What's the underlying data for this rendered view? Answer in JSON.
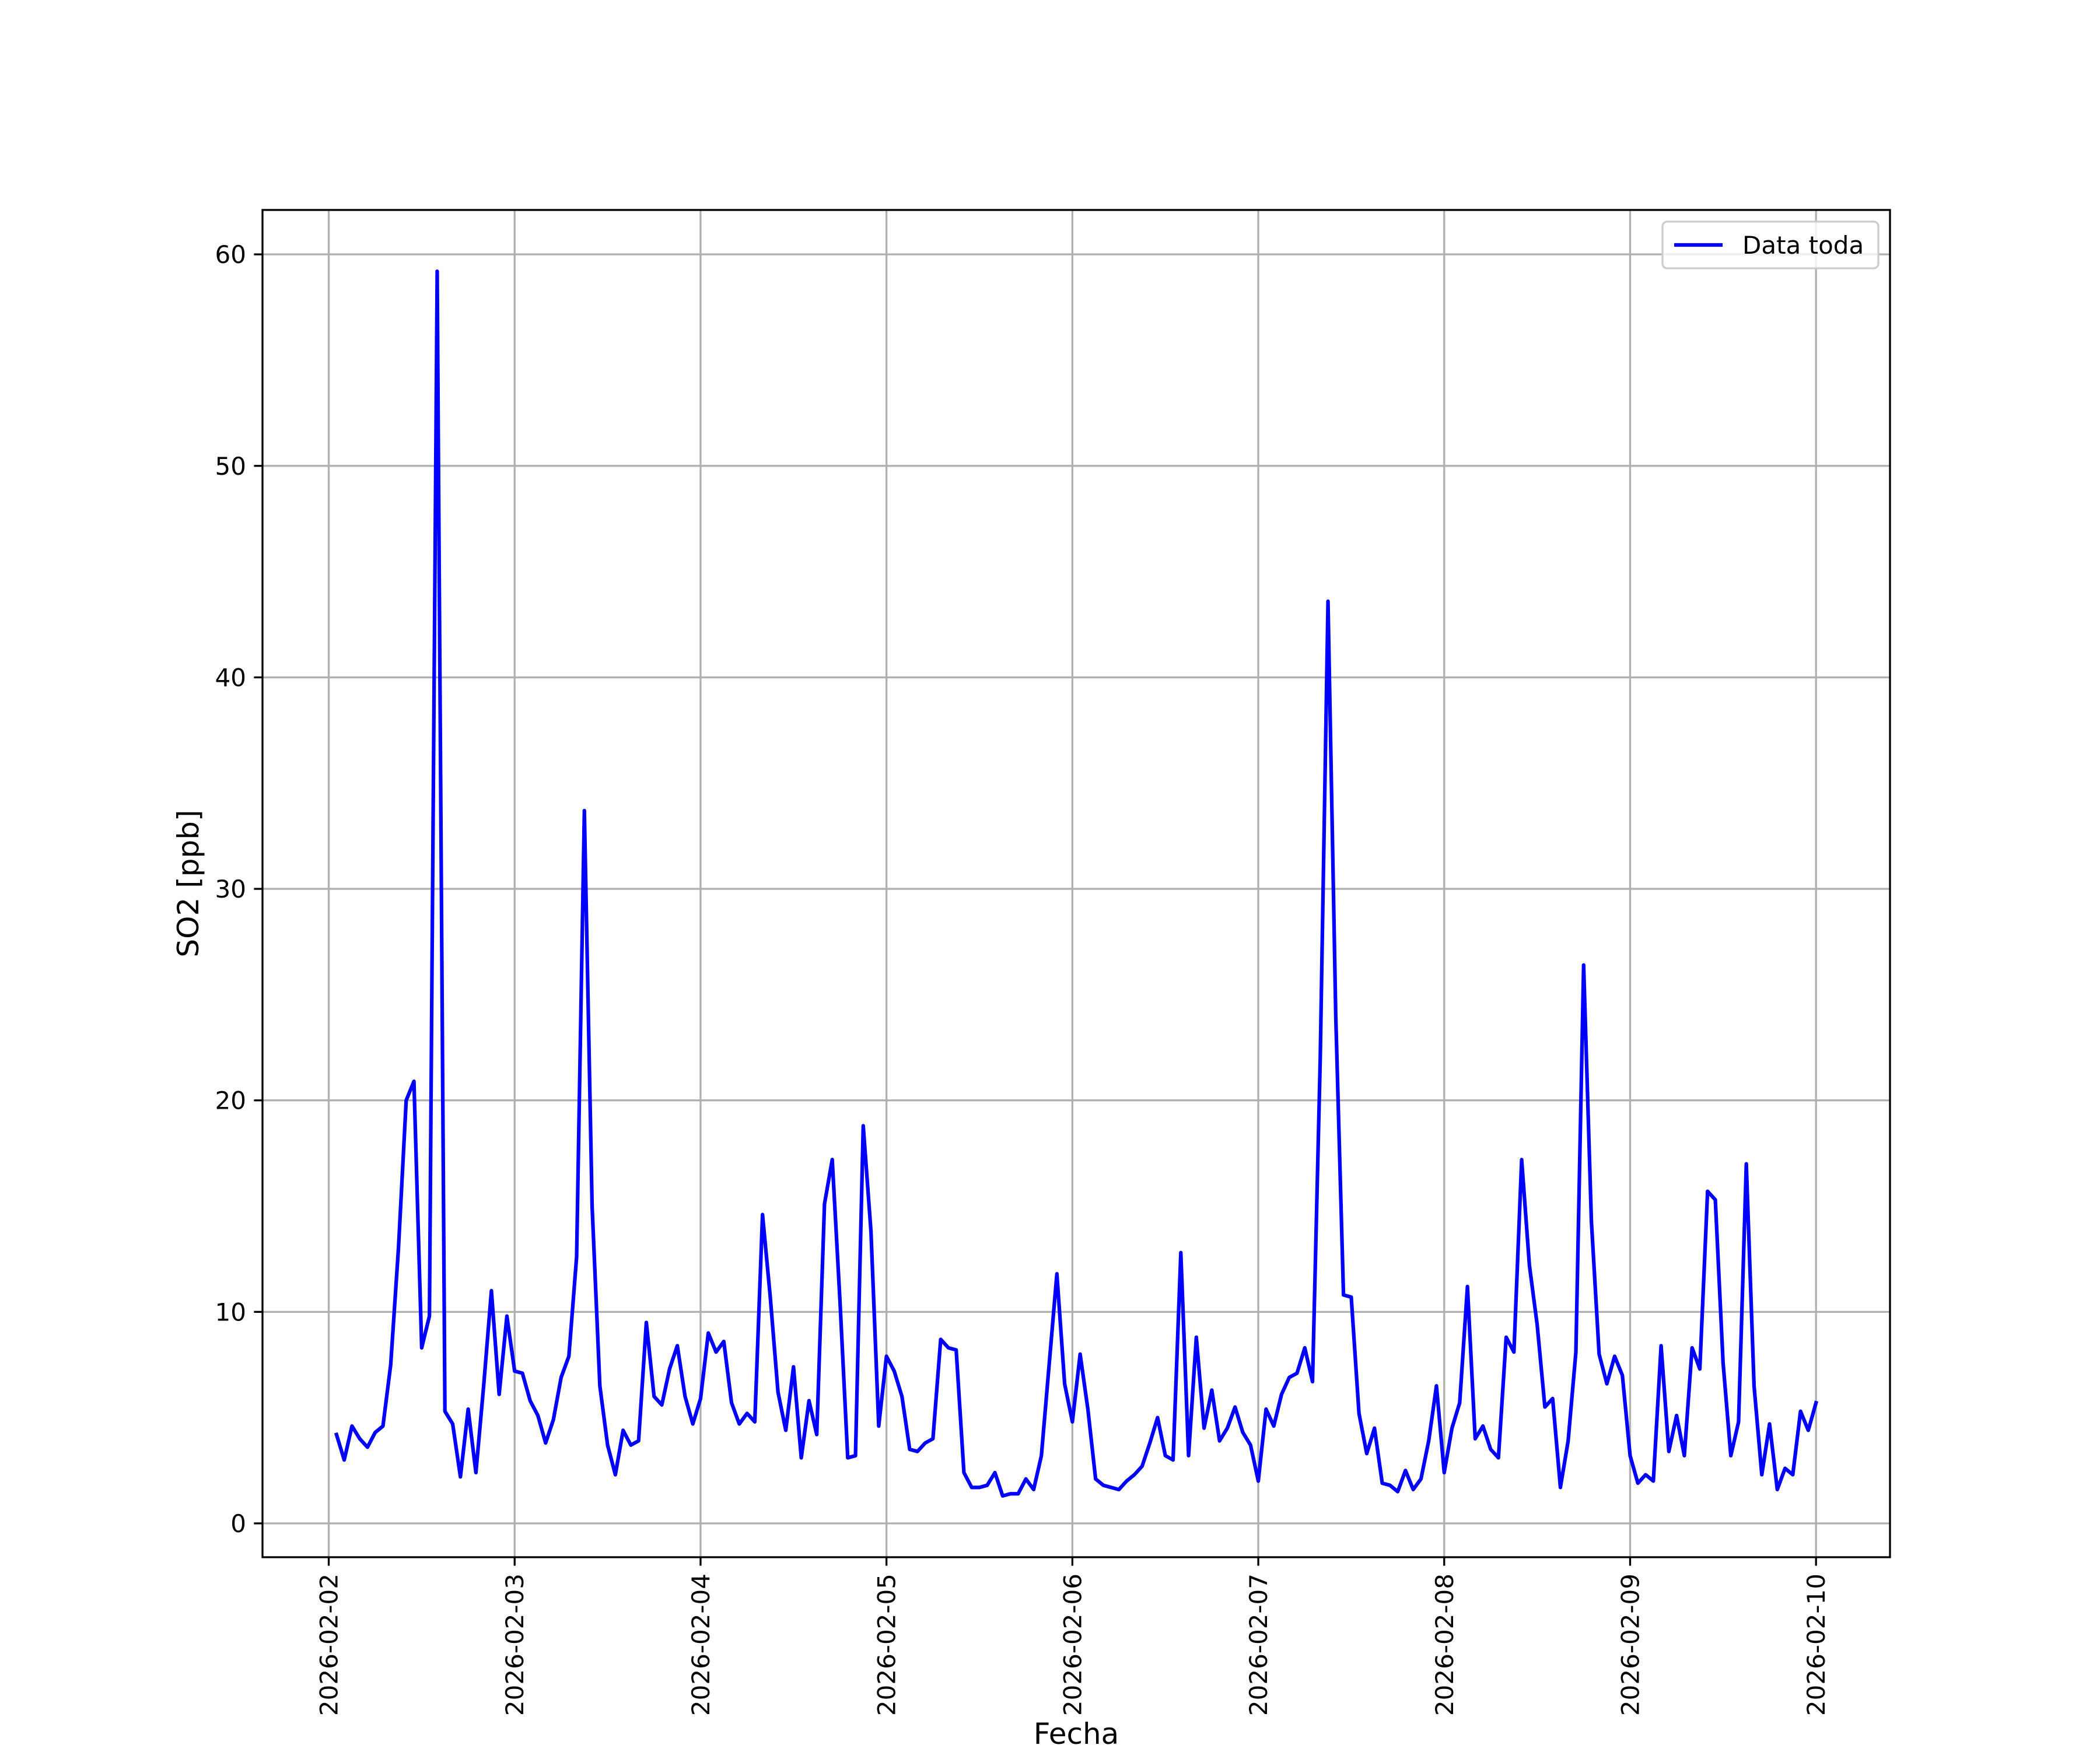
{
  "chart_data": {
    "type": "line",
    "xlabel": "Fecha",
    "ylabel": "SO2 [ppb]",
    "x": [
      "2026-02-02 01:00",
      "2026-02-02 02:00",
      "2026-02-02 03:00",
      "2026-02-02 04:00",
      "2026-02-02 05:00",
      "2026-02-02 06:00",
      "2026-02-02 07:00",
      "2026-02-02 08:00",
      "2026-02-02 09:00",
      "2026-02-02 10:00",
      "2026-02-02 11:00",
      "2026-02-02 12:00",
      "2026-02-02 13:00",
      "2026-02-02 14:00",
      "2026-02-02 15:00",
      "2026-02-02 16:00",
      "2026-02-02 17:00",
      "2026-02-02 18:00",
      "2026-02-02 19:00",
      "2026-02-02 20:00",
      "2026-02-02 21:00",
      "2026-02-02 22:00",
      "2026-02-02 23:00",
      "2026-02-03 00:00",
      "2026-02-03 01:00",
      "2026-02-03 02:00",
      "2026-02-03 03:00",
      "2026-02-03 04:00",
      "2026-02-03 05:00",
      "2026-02-03 06:00",
      "2026-02-03 07:00",
      "2026-02-03 08:00",
      "2026-02-03 09:00",
      "2026-02-03 10:00",
      "2026-02-03 11:00",
      "2026-02-03 12:00",
      "2026-02-03 13:00",
      "2026-02-03 14:00",
      "2026-02-03 15:00",
      "2026-02-03 16:00",
      "2026-02-03 17:00",
      "2026-02-03 18:00",
      "2026-02-03 19:00",
      "2026-02-03 20:00",
      "2026-02-03 21:00",
      "2026-02-03 22:00",
      "2026-02-03 23:00",
      "2026-02-04 00:00",
      "2026-02-04 01:00",
      "2026-02-04 02:00",
      "2026-02-04 03:00",
      "2026-02-04 04:00",
      "2026-02-04 05:00",
      "2026-02-04 06:00",
      "2026-02-04 07:00",
      "2026-02-04 08:00",
      "2026-02-04 09:00",
      "2026-02-04 10:00",
      "2026-02-04 11:00",
      "2026-02-04 12:00",
      "2026-02-04 13:00",
      "2026-02-04 14:00",
      "2026-02-04 15:00",
      "2026-02-04 16:00",
      "2026-02-04 17:00",
      "2026-02-04 18:00",
      "2026-02-04 19:00",
      "2026-02-04 20:00",
      "2026-02-04 21:00",
      "2026-02-04 22:00",
      "2026-02-04 23:00",
      "2026-02-05 00:00",
      "2026-02-05 01:00",
      "2026-02-05 02:00",
      "2026-02-05 03:00",
      "2026-02-05 04:00",
      "2026-02-05 05:00",
      "2026-02-05 06:00",
      "2026-02-05 07:00",
      "2026-02-05 08:00",
      "2026-02-05 09:00",
      "2026-02-05 10:00",
      "2026-02-05 11:00",
      "2026-02-05 12:00",
      "2026-02-05 13:00",
      "2026-02-05 14:00",
      "2026-02-05 15:00",
      "2026-02-05 16:00",
      "2026-02-05 17:00",
      "2026-02-05 18:00",
      "2026-02-05 19:00",
      "2026-02-05 20:00",
      "2026-02-05 21:00",
      "2026-02-05 22:00",
      "2026-02-05 23:00",
      "2026-02-06 00:00",
      "2026-02-06 01:00",
      "2026-02-06 02:00",
      "2026-02-06 03:00",
      "2026-02-06 04:00",
      "2026-02-06 05:00",
      "2026-02-06 06:00",
      "2026-02-06 07:00",
      "2026-02-06 08:00",
      "2026-02-06 09:00",
      "2026-02-06 10:00",
      "2026-02-06 11:00",
      "2026-02-06 12:00",
      "2026-02-06 13:00",
      "2026-02-06 14:00",
      "2026-02-06 15:00",
      "2026-02-06 16:00",
      "2026-02-06 17:00",
      "2026-02-06 18:00",
      "2026-02-06 19:00",
      "2026-02-06 20:00",
      "2026-02-06 21:00",
      "2026-02-06 22:00",
      "2026-02-06 23:00",
      "2026-02-07 00:00",
      "2026-02-07 01:00",
      "2026-02-07 02:00",
      "2026-02-07 03:00",
      "2026-02-07 04:00",
      "2026-02-07 05:00",
      "2026-02-07 06:00",
      "2026-02-07 07:00",
      "2026-02-07 08:00",
      "2026-02-07 09:00",
      "2026-02-07 10:00",
      "2026-02-07 11:00",
      "2026-02-07 12:00",
      "2026-02-07 13:00",
      "2026-02-07 14:00",
      "2026-02-07 15:00",
      "2026-02-07 16:00",
      "2026-02-07 17:00",
      "2026-02-07 18:00",
      "2026-02-07 19:00",
      "2026-02-07 20:00",
      "2026-02-07 21:00",
      "2026-02-07 22:00",
      "2026-02-07 23:00",
      "2026-02-08 00:00",
      "2026-02-08 01:00",
      "2026-02-08 02:00",
      "2026-02-08 03:00",
      "2026-02-08 04:00",
      "2026-02-08 05:00",
      "2026-02-08 06:00",
      "2026-02-08 07:00",
      "2026-02-08 08:00",
      "2026-02-08 09:00",
      "2026-02-08 10:00",
      "2026-02-08 11:00",
      "2026-02-08 12:00",
      "2026-02-08 13:00",
      "2026-02-08 14:00",
      "2026-02-08 15:00",
      "2026-02-08 16:00",
      "2026-02-08 17:00",
      "2026-02-08 18:00",
      "2026-02-08 19:00",
      "2026-02-08 20:00",
      "2026-02-08 21:00",
      "2026-02-08 22:00",
      "2026-02-08 23:00",
      "2026-02-09 00:00",
      "2026-02-09 01:00",
      "2026-02-09 02:00",
      "2026-02-09 03:00",
      "2026-02-09 04:00",
      "2026-02-09 05:00",
      "2026-02-09 06:00",
      "2026-02-09 07:00",
      "2026-02-09 08:00",
      "2026-02-09 09:00",
      "2026-02-09 10:00",
      "2026-02-09 11:00",
      "2026-02-09 12:00",
      "2026-02-09 13:00",
      "2026-02-09 14:00",
      "2026-02-09 15:00",
      "2026-02-09 16:00",
      "2026-02-09 17:00",
      "2026-02-09 18:00",
      "2026-02-09 19:00",
      "2026-02-09 20:00",
      "2026-02-09 21:00",
      "2026-02-09 22:00",
      "2026-02-09 23:00",
      "2026-02-10 00:00"
    ],
    "series": [
      {
        "name": "Data toda",
        "color": "#0000ff",
        "values": [
          4.2,
          3.0,
          4.6,
          4.0,
          3.6,
          4.3,
          4.6,
          7.5,
          13,
          20,
          20.9,
          8.3,
          9.8,
          59.2,
          5.3,
          4.7,
          2.2,
          5.4,
          2.4,
          6.5,
          11.0,
          6.1,
          9.8,
          7.2,
          7.1,
          5.8,
          5.1,
          3.8,
          4.9,
          6.9,
          7.9,
          12.6,
          33.7,
          15,
          6.5,
          3.7,
          2.3,
          4.4,
          3.7,
          3.9,
          9.5,
          6.0,
          5.6,
          7.3,
          8.4,
          6.0,
          4.7,
          5.9,
          9.0,
          8.1,
          8.6,
          5.7,
          4.7,
          5.2,
          4.8,
          14.6,
          10.7,
          6.2,
          4.4,
          7.4,
          3.1,
          5.8,
          4.2,
          15.1,
          17.2,
          10.5,
          3.1,
          3.2,
          18.8,
          13.8,
          4.6,
          7.9,
          7.2,
          6.0,
          3.5,
          3.4,
          3.8,
          4.0,
          8.7,
          8.3,
          8.2,
          2.4,
          1.7,
          1.7,
          1.8,
          2.4,
          1.3,
          1.4,
          1.4,
          2.1,
          1.6,
          3.2,
          7.5,
          11.8,
          6.6,
          4.8,
          8.0,
          5.4,
          2.1,
          1.8,
          1.7,
          1.6,
          2.0,
          2.3,
          2.7,
          3.8,
          5.0,
          3.2,
          3.0,
          12.8,
          3.2,
          8.8,
          4.5,
          6.3,
          3.9,
          4.5,
          5.5,
          4.3,
          3.7,
          2.0,
          5.4,
          4.6,
          6.1,
          6.9,
          7.1,
          8.3,
          6.7,
          22,
          43.6,
          24,
          10.8,
          10.7,
          5.2,
          3.3,
          4.5,
          1.9,
          1.8,
          1.5,
          2.5,
          1.6,
          2.1,
          3.9,
          6.5,
          2.4,
          4.5,
          5.7,
          11.2,
          4.0,
          4.6,
          3.5,
          3.1,
          8.8,
          8.1,
          17.2,
          12.2,
          9.4,
          5.5,
          5.9,
          1.7,
          3.9,
          8.1,
          26.4,
          14.3,
          8.0,
          6.6,
          7.9,
          7.0,
          3.2,
          1.9,
          2.3,
          2.0,
          8.4,
          3.4,
          5.1,
          3.2,
          8.3,
          7.3,
          15.7,
          15.3,
          7.6,
          3.2,
          4.8,
          17.0,
          6.5,
          2.3,
          4.7,
          1.6,
          2.6,
          2.3,
          5.3,
          4.4,
          5.7
        ]
      }
    ],
    "xlim": [
      "2026-02-01 15:27",
      "2026-02-10 09:33"
    ],
    "xticks": [
      "2026-02-02",
      "2026-02-03",
      "2026-02-04",
      "2026-02-05",
      "2026-02-06",
      "2026-02-07",
      "2026-02-08",
      "2026-02-09",
      "2026-02-10"
    ],
    "ylim": [
      -1.6,
      62.1
    ],
    "yticks": [
      0,
      10,
      20,
      30,
      40,
      50,
      60
    ],
    "grid": true,
    "legend": "upper right"
  }
}
